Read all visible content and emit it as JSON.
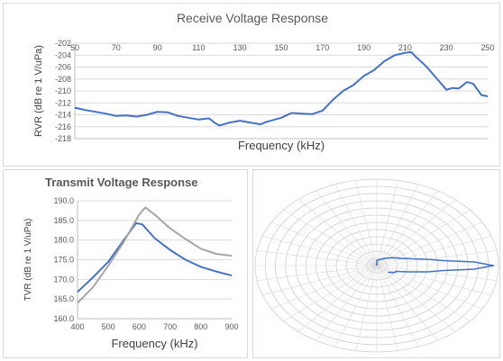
{
  "chart_data": [
    {
      "type": "line",
      "title": "Receive Voltage Response",
      "xlabel": "Frequency (kHz)",
      "ylabel": "RVR (dB re 1 V/uPa)",
      "xlim": [
        50,
        250
      ],
      "ylim": [
        -218,
        -202
      ],
      "x_ticks": [
        "50",
        "70",
        "90",
        "110",
        "130",
        "150",
        "170",
        "190",
        "210",
        "230",
        "250"
      ],
      "y_ticks": [
        "-202",
        "-204",
        "-206",
        "-208",
        "-210",
        "-212",
        "-214",
        "-216",
        "-218"
      ],
      "x_axis_position": "top",
      "grid": "horizontal",
      "series": [
        {
          "color": "#4472c4",
          "x": [
            50,
            55,
            60,
            65,
            70,
            75,
            80,
            85,
            90,
            95,
            100,
            105,
            110,
            115,
            118,
            120,
            125,
            130,
            135,
            140,
            142,
            145,
            150,
            155,
            160,
            165,
            170,
            175,
            180,
            185,
            190,
            195,
            200,
            205,
            210,
            213,
            215,
            220,
            225,
            230,
            233,
            236,
            240,
            243,
            247,
            250
          ],
          "y": [
            -212.8,
            -213.2,
            -213.5,
            -213.8,
            -214.2,
            -214.1,
            -214.3,
            -214.0,
            -213.5,
            -213.6,
            -214.2,
            -214.5,
            -214.8,
            -214.6,
            -215.4,
            -215.8,
            -215.3,
            -215.0,
            -215.3,
            -215.6,
            -215.3,
            -215.0,
            -214.5,
            -213.7,
            -213.8,
            -213.9,
            -213.3,
            -211.5,
            -210.0,
            -209.0,
            -207.5,
            -206.5,
            -205.0,
            -204.0,
            -203.6,
            -203.5,
            -204.2,
            -205.8,
            -207.8,
            -209.8,
            -209.5,
            -209.6,
            -208.5,
            -208.8,
            -210.7,
            -210.9
          ]
        }
      ]
    },
    {
      "type": "line",
      "title": "Transmit Voltage Response",
      "xlabel": "Frequency (kHz)",
      "ylabel": "TVR (dB re 1 V/uPa)",
      "xlim": [
        400,
        900
      ],
      "ylim": [
        160,
        190
      ],
      "x_ticks": [
        "400",
        "500",
        "600",
        "700",
        "800",
        "900"
      ],
      "y_ticks": [
        "190.0",
        "185.0",
        "180.0",
        "175.0",
        "170.0",
        "165.0",
        "160.0"
      ],
      "grid": "horizontal",
      "series": [
        {
          "color": "#4472c4",
          "x": [
            400,
            450,
            500,
            550,
            590,
            610,
            650,
            700,
            750,
            800,
            850,
            900
          ],
          "y": [
            166.8,
            170.5,
            174.5,
            180.0,
            184.3,
            184.0,
            180.5,
            177.5,
            175.0,
            173.2,
            172.0,
            171.0
          ]
        },
        {
          "color": "#a6a6a6",
          "x": [
            400,
            450,
            500,
            550,
            600,
            620,
            650,
            700,
            750,
            800,
            850,
            900
          ],
          "y": [
            164.0,
            168.0,
            173.5,
            179.5,
            186.5,
            188.3,
            186.5,
            183.0,
            180.3,
            177.8,
            176.5,
            176.0
          ]
        }
      ]
    },
    {
      "type": "polar",
      "rings": 12,
      "spokes": 36,
      "series": [
        {
          "color": "#4472c4",
          "angles_deg": [
            -40,
            -30,
            -22,
            -15,
            -10,
            -6,
            -3,
            0,
            3,
            6,
            10,
            15,
            22,
            30,
            40,
            55,
            90
          ],
          "radius_fraction": [
            0.12,
            0.16,
            0.18,
            0.28,
            0.42,
            0.55,
            0.8,
            0.96,
            0.8,
            0.55,
            0.42,
            0.3,
            0.22,
            0.18,
            0.14,
            0.1,
            0.06
          ]
        }
      ]
    }
  ]
}
